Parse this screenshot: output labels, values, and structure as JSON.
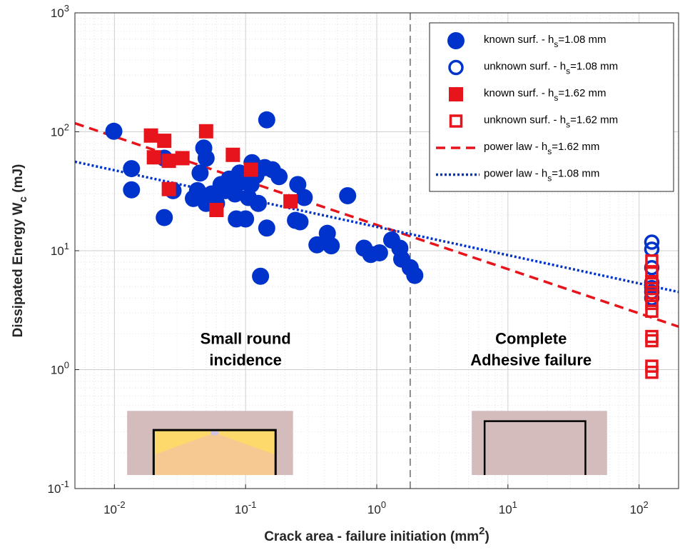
{
  "chart_data": {
    "type": "scatter",
    "x_scale": "log",
    "y_scale": "log",
    "xlim": [
      0.005,
      200
    ],
    "ylim": [
      0.1,
      1000
    ],
    "xlabel": {
      "text": "Crack area - failure initiation (mm",
      "sup": "2",
      "tail": ")"
    },
    "ylabel": {
      "text": "Dissipated Energy W",
      "sub": "c",
      "tail": " (mJ)"
    },
    "x_ticks": [
      {
        "value": 0.01,
        "base": "10",
        "exp": "-2"
      },
      {
        "value": 0.1,
        "base": "10",
        "exp": "-1"
      },
      {
        "value": 1,
        "base": "10",
        "exp": "0"
      },
      {
        "value": 10,
        "base": "10",
        "exp": "1"
      },
      {
        "value": 100,
        "base": "10",
        "exp": "2"
      }
    ],
    "y_ticks": [
      {
        "value": 0.1,
        "base": "10",
        "exp": "-1"
      },
      {
        "value": 1,
        "base": "10",
        "exp": "0"
      },
      {
        "value": 10,
        "base": "10",
        "exp": "1"
      },
      {
        "value": 100,
        "base": "10",
        "exp": "2"
      },
      {
        "value": 1000,
        "base": "10",
        "exp": "3"
      }
    ],
    "grid": true,
    "minor_grid": true,
    "legend_position": "top-right",
    "vertical_line_x": 1.8,
    "colors": {
      "blue": "#0033cc",
      "red": "#e8141b"
    },
    "series": [
      {
        "name": "known surf. - h_s=1.08 mm",
        "label": {
          "pre": "known surf. - h",
          "sub": "s",
          "post": "=1.08 mm"
        },
        "marker": "circle-filled",
        "color": "#0033cc",
        "points": [
          [
            0.0099,
            101
          ],
          [
            0.0135,
            49
          ],
          [
            0.0135,
            32.5
          ],
          [
            0.024,
            19
          ],
          [
            0.024,
            60
          ],
          [
            0.028,
            32
          ],
          [
            0.04,
            27.5
          ],
          [
            0.043,
            32
          ],
          [
            0.045,
            45
          ],
          [
            0.048,
            73
          ],
          [
            0.05,
            60
          ],
          [
            0.05,
            25
          ],
          [
            0.055,
            30
          ],
          [
            0.06,
            25
          ],
          [
            0.065,
            36
          ],
          [
            0.07,
            32
          ],
          [
            0.075,
            40
          ],
          [
            0.08,
            38
          ],
          [
            0.083,
            30
          ],
          [
            0.085,
            18.5
          ],
          [
            0.09,
            45
          ],
          [
            0.095,
            38
          ],
          [
            0.1,
            18.5
          ],
          [
            0.105,
            28
          ],
          [
            0.11,
            36
          ],
          [
            0.112,
            55
          ],
          [
            0.12,
            43
          ],
          [
            0.125,
            25
          ],
          [
            0.13,
            6.1
          ],
          [
            0.14,
            50
          ],
          [
            0.145,
            15.5
          ],
          [
            0.145,
            126
          ],
          [
            0.16,
            48
          ],
          [
            0.18,
            42
          ],
          [
            0.24,
            18
          ],
          [
            0.25,
            36
          ],
          [
            0.26,
            17.5
          ],
          [
            0.28,
            28
          ],
          [
            0.35,
            11.2
          ],
          [
            0.42,
            14
          ],
          [
            0.45,
            11
          ],
          [
            0.6,
            29
          ],
          [
            0.8,
            10.5
          ],
          [
            0.9,
            9.3
          ],
          [
            1.05,
            9.6
          ],
          [
            1.3,
            12.3
          ],
          [
            1.5,
            10.5
          ],
          [
            1.55,
            8.5
          ],
          [
            1.8,
            7.2
          ],
          [
            1.95,
            6.2
          ]
        ]
      },
      {
        "name": "unknown surf. - h_s=1.08 mm",
        "label": {
          "pre": "unknown surf. - h",
          "sub": "s",
          "post": "=1.08 mm"
        },
        "marker": "circle-open",
        "color": "#0033cc",
        "points": [
          [
            125,
            11.8
          ],
          [
            125,
            10.3
          ],
          [
            125,
            7.2
          ],
          [
            125,
            5.4
          ],
          [
            125,
            4.9
          ],
          [
            125,
            4.5
          ],
          [
            125,
            4.0
          ]
        ]
      },
      {
        "name": "known surf. - h_s=1.62 mm",
        "label": {
          "pre": "known surf. - h",
          "sub": "s",
          "post": "=1.62 mm"
        },
        "marker": "square-filled",
        "color": "#e8141b",
        "points": [
          [
            0.019,
            93
          ],
          [
            0.02,
            61
          ],
          [
            0.024,
            84
          ],
          [
            0.026,
            57
          ],
          [
            0.026,
            33
          ],
          [
            0.033,
            60
          ],
          [
            0.05,
            101
          ],
          [
            0.06,
            22
          ],
          [
            0.08,
            64
          ],
          [
            0.11,
            48
          ],
          [
            0.22,
            26
          ]
        ]
      },
      {
        "name": "unknown surf. - h_s=1.62 mm",
        "label": {
          "pre": "unknown surf. - h",
          "sub": "s",
          "post": "=1.62 mm"
        },
        "marker": "square-open",
        "color": "#e8141b",
        "points": [
          [
            125,
            8.2
          ],
          [
            125,
            6.5
          ],
          [
            125,
            5.5
          ],
          [
            125,
            4.8
          ],
          [
            125,
            4.2
          ],
          [
            125,
            3.6
          ],
          [
            125,
            3.1
          ],
          [
            125,
            1.9
          ],
          [
            125,
            1.75
          ],
          [
            125,
            1.07
          ],
          [
            125,
            0.95
          ]
        ]
      },
      {
        "name": "power law - h_s=1.62 mm",
        "label": {
          "pre": "power law - h",
          "sub": "s",
          "post": "=1.62 mm"
        },
        "marker": "line-dashed",
        "color": "#e8141b",
        "line": [
          [
            0.005,
            118
          ],
          [
            200,
            2.3
          ]
        ]
      },
      {
        "name": "power law - h_s=1.08 mm",
        "label": {
          "pre": "power law - h",
          "sub": "s",
          "post": "=1.08 mm"
        },
        "marker": "line-dotted",
        "color": "#0033cc",
        "line": [
          [
            0.005,
            56
          ],
          [
            200,
            4.5
          ]
        ]
      }
    ],
    "annotations": [
      {
        "lines": [
          "Small round",
          "incidence"
        ],
        "x": 0.1,
        "y": 1.65
      },
      {
        "lines": [
          "Complete",
          "Adhesive failure"
        ],
        "x": 15,
        "y": 1.65
      }
    ],
    "insets": [
      {
        "name": "small-round-inset",
        "kind": "small-round",
        "x0": 0.0125,
        "x1": 0.23,
        "y0": 0.13,
        "y1": 0.45
      },
      {
        "name": "adhesive-failure-inset",
        "kind": "adhesive",
        "x0": 5.3,
        "x1": 57,
        "y0": 0.13,
        "y1": 0.45
      }
    ]
  }
}
